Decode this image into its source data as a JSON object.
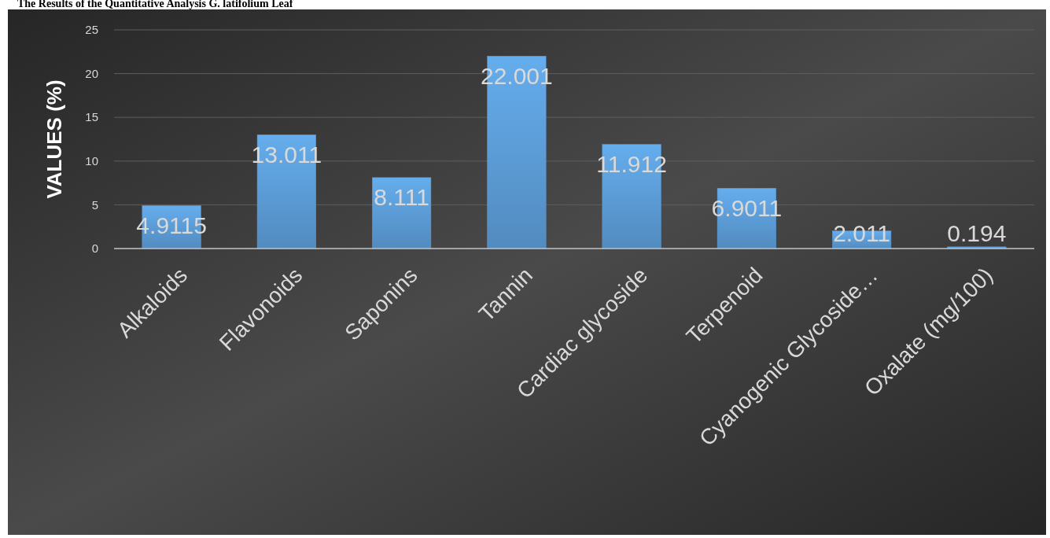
{
  "chart_data": {
    "type": "bar",
    "title": "The Results of the Quantitative Analysis G. latifolium Leaf",
    "ylabel": "VALUES (%)",
    "categories": [
      "Alkaloids",
      "Flavonoids",
      "Saponins",
      "Tannin",
      "Cardiac glycoside",
      "Terpenoid",
      "Cyanogenic Glycoside…",
      "Oxalate (mg/100)"
    ],
    "values": [
      4.9115,
      13.011,
      8.111,
      22.001,
      11.912,
      6.9011,
      2.011,
      0.194
    ],
    "color": "#5b9bd5",
    "ylim": [
      0,
      25
    ],
    "yticks": [
      0,
      5,
      10,
      15,
      20,
      25
    ],
    "grid": "y",
    "data_labels": true
  }
}
